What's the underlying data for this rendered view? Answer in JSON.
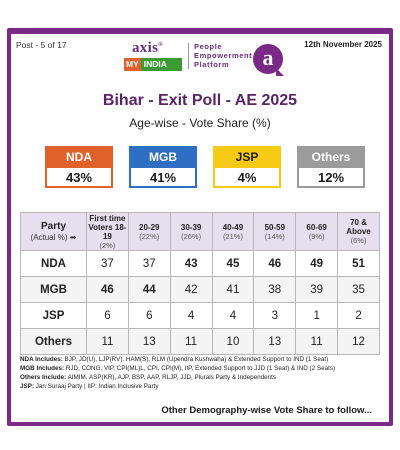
{
  "header": {
    "post": "Post - 5 of 17",
    "date": "12th November 2025",
    "logo": {
      "axis": "axis",
      "my": "MY",
      "india": "INDIA",
      "tagline": [
        "People",
        "Empowerment",
        "Platform"
      ]
    },
    "badge": "a"
  },
  "title": "Bihar - Exit Poll - AE 2025",
  "subtitle": "Age-wise - Vote Share (%)",
  "summary": [
    {
      "party": "NDA",
      "share": "43%",
      "color": "#e0612a",
      "cls": "nda"
    },
    {
      "party": "MGB",
      "share": "41%",
      "color": "#2e6fc3",
      "cls": "mgb"
    },
    {
      "party": "JSP",
      "share": "4%",
      "color": "#f7cb15",
      "cls": "jsp"
    },
    {
      "party": "Others",
      "share": "12%",
      "color": "#9b9b9b",
      "cls": "oth"
    }
  ],
  "table": {
    "party_header": "Party",
    "actual_header": "(Actual %) ➡",
    "columns": [
      {
        "label": "First time Voters 18-19",
        "pct": "(2%)"
      },
      {
        "label": "20-29",
        "pct": "(22%)"
      },
      {
        "label": "30-39",
        "pct": "(26%)"
      },
      {
        "label": "40-49",
        "pct": "(21%)"
      },
      {
        "label": "50-59",
        "pct": "(14%)"
      },
      {
        "label": "60-69",
        "pct": "(9%)"
      },
      {
        "label": "70 & Above",
        "pct": "(6%)"
      }
    ],
    "rows": [
      {
        "party": "NDA",
        "values": [
          "37",
          "37",
          "43",
          "45",
          "46",
          "49",
          "51"
        ],
        "bold": [
          false,
          false,
          true,
          true,
          true,
          true,
          true
        ]
      },
      {
        "party": "MGB",
        "values": [
          "46",
          "44",
          "42",
          "41",
          "38",
          "39",
          "35"
        ],
        "bold": [
          true,
          true,
          false,
          false,
          false,
          false,
          false
        ]
      },
      {
        "party": "JSP",
        "values": [
          "6",
          "6",
          "4",
          "4",
          "3",
          "1",
          "2"
        ],
        "bold": [
          false,
          false,
          false,
          false,
          false,
          false,
          false
        ]
      },
      {
        "party": "Others",
        "values": [
          "11",
          "13",
          "11",
          "10",
          "13",
          "11",
          "12"
        ],
        "bold": [
          false,
          false,
          false,
          false,
          false,
          false,
          false
        ]
      }
    ]
  },
  "notes": [
    {
      "label": "NDA Includes:",
      "text": " BJP, JD(U), LJP(RV), HAM(S), RLM (Upendra Kushwaha) & Extended Support to IND (1 Seat)"
    },
    {
      "label": "MGB Includes:",
      "text": " RJD, CONG, VIP, CPI(ML)L, CPI, CPI(M), IIP, Extended Support to JJD (1 Seat) & IND (2 Seats)"
    },
    {
      "label": "Others Include:",
      "text": " AIMIM, ASP(KR), AJP, BSP, AAP, RLJP, JJD, Plurals Party & Independents"
    },
    {
      "label": "JSP:",
      "text": " Jan Suraaj Party  |  IIP: Indian Inclusive Party"
    }
  ],
  "footer": "Other Demography-wise Vote Share to follow..."
}
